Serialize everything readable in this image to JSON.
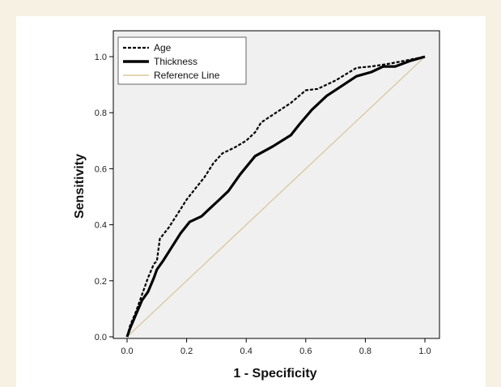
{
  "chart_data": {
    "type": "line",
    "title": "",
    "xlabel": "1 - Specificity",
    "ylabel": "Sensitivity",
    "xlim": [
      0.0,
      1.0
    ],
    "ylim": [
      0.0,
      1.0
    ],
    "x_ticks": [
      "0.0",
      "0.2",
      "0.4",
      "0.6",
      "0.8",
      "1.0"
    ],
    "y_ticks": [
      "0.0",
      "0.2",
      "0.4",
      "0.6",
      "0.8",
      "1.0"
    ],
    "legend_position": "top-left",
    "plot_background": "#f0f0f0",
    "grid": false,
    "series": [
      {
        "name": "Age",
        "style": "dashed",
        "color": "#000000",
        "points": [
          [
            0.0,
            0.0
          ],
          [
            0.01,
            0.04
          ],
          [
            0.03,
            0.09
          ],
          [
            0.05,
            0.15
          ],
          [
            0.07,
            0.21
          ],
          [
            0.09,
            0.26
          ],
          [
            0.1,
            0.27
          ],
          [
            0.11,
            0.35
          ],
          [
            0.14,
            0.39
          ],
          [
            0.17,
            0.44
          ],
          [
            0.2,
            0.49
          ],
          [
            0.23,
            0.53
          ],
          [
            0.26,
            0.57
          ],
          [
            0.29,
            0.62
          ],
          [
            0.32,
            0.655
          ],
          [
            0.36,
            0.675
          ],
          [
            0.4,
            0.7
          ],
          [
            0.43,
            0.73
          ],
          [
            0.45,
            0.765
          ],
          [
            0.5,
            0.8
          ],
          [
            0.55,
            0.835
          ],
          [
            0.6,
            0.88
          ],
          [
            0.64,
            0.885
          ],
          [
            0.7,
            0.915
          ],
          [
            0.77,
            0.96
          ],
          [
            0.82,
            0.965
          ],
          [
            0.88,
            0.975
          ],
          [
            0.93,
            0.985
          ],
          [
            1.0,
            1.0
          ]
        ]
      },
      {
        "name": "Thickness",
        "style": "solid",
        "color": "#000000",
        "points": [
          [
            0.0,
            0.0
          ],
          [
            0.01,
            0.03
          ],
          [
            0.03,
            0.08
          ],
          [
            0.05,
            0.13
          ],
          [
            0.07,
            0.16
          ],
          [
            0.09,
            0.21
          ],
          [
            0.1,
            0.24
          ],
          [
            0.12,
            0.27
          ],
          [
            0.15,
            0.32
          ],
          [
            0.18,
            0.37
          ],
          [
            0.21,
            0.41
          ],
          [
            0.25,
            0.43
          ],
          [
            0.28,
            0.46
          ],
          [
            0.31,
            0.49
          ],
          [
            0.34,
            0.52
          ],
          [
            0.38,
            0.58
          ],
          [
            0.43,
            0.645
          ],
          [
            0.49,
            0.68
          ],
          [
            0.55,
            0.72
          ],
          [
            0.58,
            0.76
          ],
          [
            0.62,
            0.81
          ],
          [
            0.67,
            0.86
          ],
          [
            0.72,
            0.895
          ],
          [
            0.77,
            0.93
          ],
          [
            0.82,
            0.945
          ],
          [
            0.86,
            0.965
          ],
          [
            0.9,
            0.965
          ],
          [
            0.95,
            0.985
          ],
          [
            1.0,
            1.0
          ]
        ]
      },
      {
        "name": "Reference Line",
        "style": "solid",
        "color": "#d8c89a",
        "points": [
          [
            0.0,
            0.0
          ],
          [
            1.0,
            1.0
          ]
        ]
      }
    ]
  }
}
